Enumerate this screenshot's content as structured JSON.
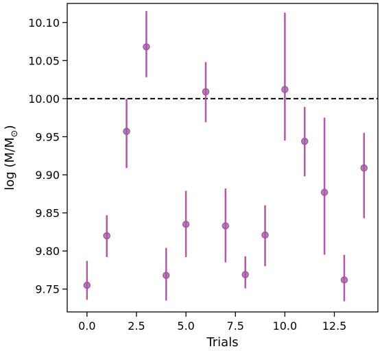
{
  "chart_data": {
    "type": "scatter",
    "title": "",
    "xlabel": "Trials",
    "ylabel": "log (M/M",
    "ylabel_subscript": "⊙",
    "ylabel_close": ")",
    "xlim": [
      -1.0,
      14.7
    ],
    "ylim": [
      9.72,
      10.125
    ],
    "xticks": [
      0.0,
      2.5,
      5.0,
      7.5,
      10.0,
      12.5
    ],
    "xtick_labels": [
      "0.0",
      "2.5",
      "5.0",
      "7.5",
      "10.0",
      "12.5"
    ],
    "yticks": [
      9.75,
      9.8,
      9.85,
      9.9,
      9.95,
      10.0,
      10.05,
      10.1
    ],
    "ytick_labels": [
      "9.75",
      "9.80",
      "9.85",
      "9.90",
      "9.95",
      "10.00",
      "10.05",
      "10.10"
    ],
    "reference_line": {
      "y": 10.0,
      "style": "dashed",
      "color": "#000000"
    },
    "grid": false,
    "marker_color": "#a05aa0",
    "errorbar_color": "#b05aa5",
    "points": [
      {
        "x": 0,
        "y": 9.755,
        "lo": 9.736,
        "hi": 9.787
      },
      {
        "x": 1,
        "y": 9.82,
        "lo": 9.792,
        "hi": 9.847
      },
      {
        "x": 2,
        "y": 9.957,
        "lo": 9.909,
        "hi": 10.0
      },
      {
        "x": 3,
        "y": 10.068,
        "lo": 10.028,
        "hi": 10.115
      },
      {
        "x": 4,
        "y": 9.768,
        "lo": 9.735,
        "hi": 9.804
      },
      {
        "x": 5,
        "y": 9.835,
        "lo": 9.792,
        "hi": 9.879
      },
      {
        "x": 6,
        "y": 10.009,
        "lo": 9.969,
        "hi": 10.048
      },
      {
        "x": 7,
        "y": 9.833,
        "lo": 9.785,
        "hi": 9.882
      },
      {
        "x": 8,
        "y": 9.769,
        "lo": 9.751,
        "hi": 9.793
      },
      {
        "x": 9,
        "y": 9.821,
        "lo": 9.78,
        "hi": 9.86
      },
      {
        "x": 10,
        "y": 10.012,
        "lo": 9.945,
        "hi": 10.113
      },
      {
        "x": 11,
        "y": 9.944,
        "lo": 9.898,
        "hi": 9.989
      },
      {
        "x": 12,
        "y": 9.877,
        "lo": 9.795,
        "hi": 9.975
      },
      {
        "x": 13,
        "y": 9.762,
        "lo": 9.734,
        "hi": 9.795
      },
      {
        "x": 14,
        "y": 9.909,
        "lo": 9.843,
        "hi": 9.955
      }
    ]
  }
}
